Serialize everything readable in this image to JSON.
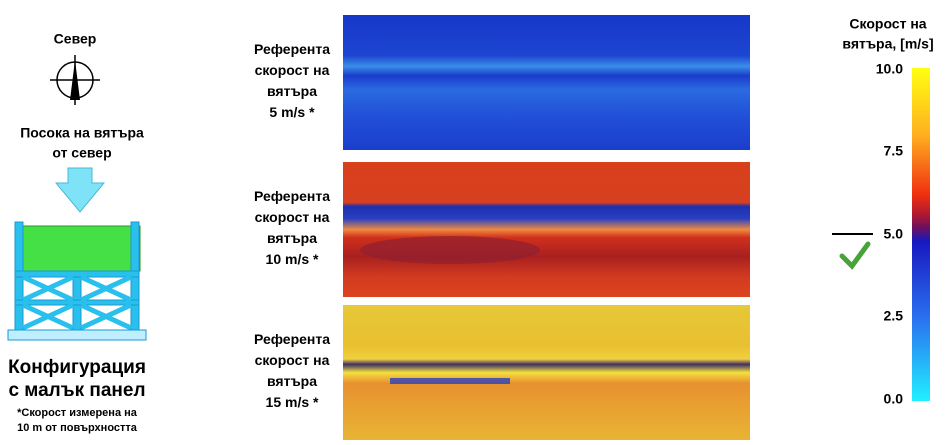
{
  "left": {
    "north_label": "Север",
    "wind_direction_lines": [
      "Посока на вятъра",
      "от север"
    ],
    "config_lines": [
      "Конфигурация",
      "с малък панел"
    ],
    "note_lines": [
      "*Скорост измерена на",
      "10 m от повърхността"
    ]
  },
  "panels": [
    {
      "label_lines": [
        "Референта",
        "скорост на",
        "вятъра",
        "5 m/s *"
      ]
    },
    {
      "label_lines": [
        "Референта",
        "скорост на",
        "вятъра",
        "10 m/s *"
      ]
    },
    {
      "label_lines": [
        "Референта",
        "скорост на",
        "вятъра",
        "15 m/s *"
      ]
    }
  ],
  "colorbar": {
    "title_lines": [
      "Скорост на",
      "вятъра, [m/s]"
    ],
    "tick_labels": [
      "10.0",
      "7.5",
      "5.0",
      "2.5",
      "0.0"
    ]
  }
}
